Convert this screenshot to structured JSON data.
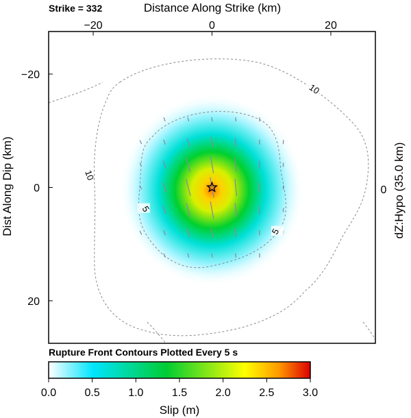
{
  "chart_data": {
    "type": "heatmap",
    "strike_label": "Strike = 332",
    "xlabel": "Distance Along Strike (km)",
    "ylabel": "Dist Along Dip (km)",
    "right_label": "dZ:Hypo (35.0 km)",
    "right_tick": "0",
    "x_ticks": [
      {
        "value": -20,
        "label": "−20"
      },
      {
        "value": 0,
        "label": "0"
      },
      {
        "value": 20,
        "label": "20"
      }
    ],
    "y_ticks": [
      {
        "value": -20,
        "label": "−20"
      },
      {
        "value": 0,
        "label": "0"
      },
      {
        "value": 20,
        "label": "20"
      }
    ],
    "xlim": [
      -27.5,
      27.5
    ],
    "ylim": [
      -27.5,
      27.5
    ],
    "hypocenter": {
      "x": 0,
      "y": 0
    },
    "slip_peak_m": 2.2,
    "contour_note": "Rupture Front Contours Plotted Every 5 s",
    "contour_labels": [
      {
        "text": "10",
        "x": 17,
        "y": -17
      },
      {
        "text": "10",
        "x": -21,
        "y": -2
      },
      {
        "text": "5",
        "x": -11.5,
        "y": 4
      },
      {
        "text": "5",
        "x": 11,
        "y": 8
      }
    ],
    "colorbar": {
      "label": "Slip (m)",
      "ticks": [
        "0.0",
        "0.5",
        "1.0",
        "1.5",
        "2.0",
        "2.5",
        "3.0"
      ],
      "range": [
        0,
        3
      ],
      "colors": [
        "#ffffff",
        "#00e5ff",
        "#00cc33",
        "#ffff00",
        "#ff9900",
        "#dd0000"
      ]
    }
  }
}
